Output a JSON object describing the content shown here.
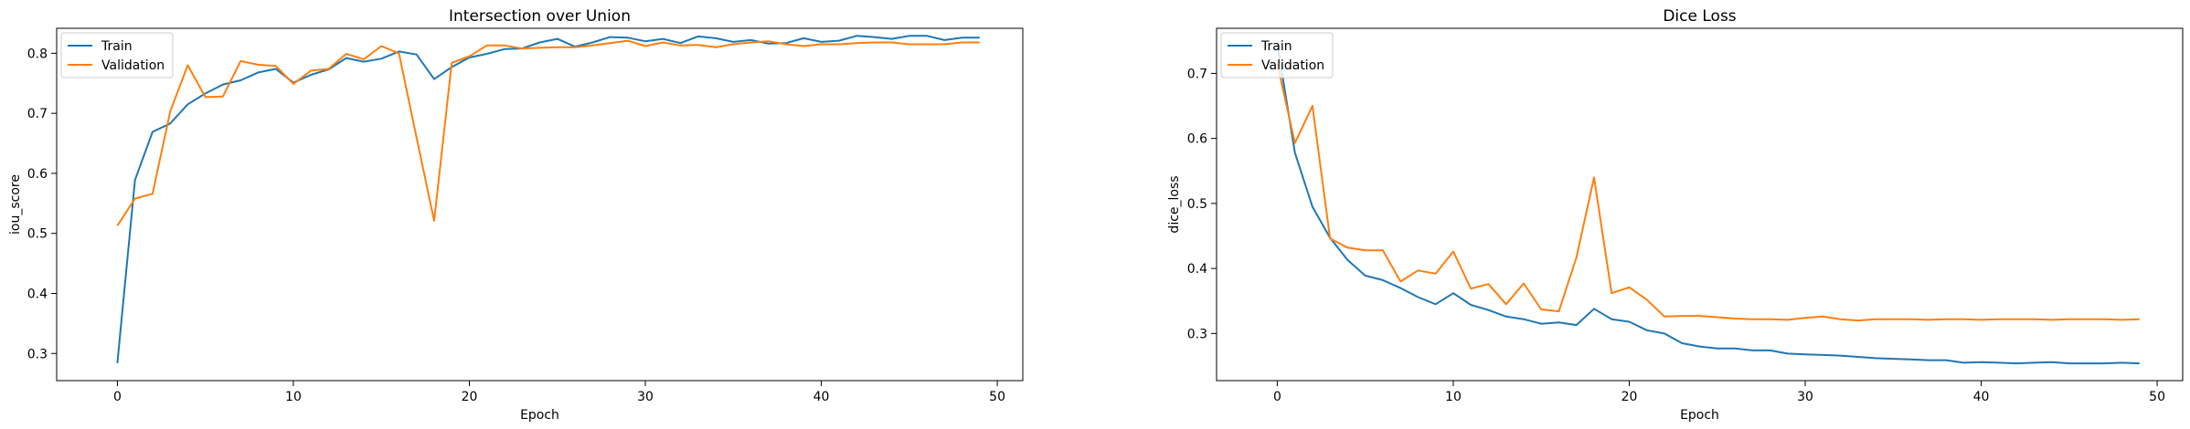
{
  "chart_data": [
    {
      "type": "line",
      "title": "Intersection over Union",
      "xlabel": "Epoch",
      "ylabel": "iou_score",
      "xlim": [
        -3.45,
        51.45
      ],
      "ylim": [
        0.2548,
        0.8416
      ],
      "xticks": [
        0,
        10,
        20,
        30,
        40,
        50
      ],
      "yticks": [
        0.3,
        0.4,
        0.5,
        0.6,
        0.7,
        0.8
      ],
      "ytick_labels": [
        "0.3",
        "0.4",
        "0.5",
        "0.6",
        "0.7",
        "0.8"
      ],
      "legend_position": "upper-left",
      "grid": false,
      "x": [
        0,
        1,
        2,
        3,
        4,
        5,
        6,
        7,
        8,
        9,
        10,
        11,
        12,
        13,
        14,
        15,
        16,
        17,
        18,
        19,
        20,
        21,
        22,
        23,
        24,
        25,
        26,
        27,
        28,
        29,
        30,
        31,
        32,
        33,
        34,
        35,
        36,
        37,
        38,
        39,
        40,
        41,
        42,
        43,
        44,
        45,
        46,
        47,
        48,
        49
      ],
      "series": [
        {
          "name": "Train",
          "color": "#1f77b4",
          "values": [
            0.284,
            0.589,
            0.669,
            0.683,
            0.715,
            0.733,
            0.748,
            0.755,
            0.768,
            0.774,
            0.751,
            0.764,
            0.773,
            0.792,
            0.786,
            0.791,
            0.803,
            0.798,
            0.757,
            0.777,
            0.793,
            0.799,
            0.807,
            0.808,
            0.818,
            0.824,
            0.811,
            0.818,
            0.827,
            0.826,
            0.82,
            0.824,
            0.817,
            0.828,
            0.825,
            0.819,
            0.822,
            0.816,
            0.817,
            0.825,
            0.819,
            0.821,
            0.829,
            0.827,
            0.824,
            0.829,
            0.829,
            0.822,
            0.826,
            0.826
          ]
        },
        {
          "name": "Validation",
          "color": "#ff7f0e",
          "values": [
            0.513,
            0.558,
            0.566,
            0.703,
            0.78,
            0.727,
            0.728,
            0.787,
            0.781,
            0.779,
            0.749,
            0.771,
            0.774,
            0.799,
            0.79,
            0.812,
            0.8,
            0.66,
            0.521,
            0.784,
            0.795,
            0.813,
            0.813,
            0.808,
            0.809,
            0.81,
            0.81,
            0.813,
            0.817,
            0.821,
            0.812,
            0.818,
            0.813,
            0.814,
            0.81,
            0.815,
            0.818,
            0.82,
            0.815,
            0.812,
            0.815,
            0.815,
            0.817,
            0.818,
            0.818,
            0.815,
            0.815,
            0.815,
            0.818,
            0.818
          ]
        }
      ]
    },
    {
      "type": "line",
      "title": "Dice Loss",
      "xlabel": "Epoch",
      "ylabel": "dice_loss",
      "xlim": [
        -3.45,
        51.45
      ],
      "ylim": [
        0.2275,
        0.7694
      ],
      "xticks": [
        0,
        10,
        20,
        30,
        40,
        50
      ],
      "yticks": [
        0.3,
        0.4,
        0.5,
        0.6,
        0.7
      ],
      "ytick_labels": [
        "0.3",
        "0.4",
        "0.5",
        "0.6",
        "0.7"
      ],
      "legend_position": "upper-left",
      "grid": false,
      "x": [
        0,
        1,
        2,
        3,
        4,
        5,
        6,
        7,
        8,
        9,
        10,
        11,
        12,
        13,
        14,
        15,
        16,
        17,
        18,
        19,
        20,
        21,
        22,
        23,
        24,
        25,
        26,
        27,
        28,
        29,
        30,
        31,
        32,
        33,
        34,
        35,
        36,
        37,
        38,
        39,
        40,
        41,
        42,
        43,
        44,
        45,
        46,
        47,
        48,
        49
      ],
      "series": [
        {
          "name": "Train",
          "color": "#1f77b4",
          "values": [
            0.746,
            0.578,
            0.495,
            0.447,
            0.413,
            0.389,
            0.382,
            0.37,
            0.356,
            0.345,
            0.362,
            0.344,
            0.336,
            0.326,
            0.322,
            0.315,
            0.317,
            0.313,
            0.338,
            0.322,
            0.318,
            0.305,
            0.3,
            0.285,
            0.28,
            0.277,
            0.277,
            0.274,
            0.274,
            0.269,
            0.268,
            0.267,
            0.266,
            0.264,
            0.262,
            0.261,
            0.26,
            0.259,
            0.259,
            0.255,
            0.256,
            0.255,
            0.254,
            0.255,
            0.256,
            0.254,
            0.254,
            0.254,
            0.255,
            0.254
          ]
        },
        {
          "name": "Validation",
          "color": "#ff7f0e",
          "values": [
            0.715,
            0.593,
            0.65,
            0.446,
            0.432,
            0.428,
            0.428,
            0.38,
            0.397,
            0.392,
            0.426,
            0.369,
            0.376,
            0.345,
            0.377,
            0.337,
            0.334,
            0.417,
            0.54,
            0.362,
            0.371,
            0.352,
            0.326,
            0.327,
            0.327,
            0.325,
            0.323,
            0.322,
            0.322,
            0.321,
            0.324,
            0.326,
            0.322,
            0.32,
            0.322,
            0.322,
            0.322,
            0.321,
            0.322,
            0.322,
            0.321,
            0.322,
            0.322,
            0.322,
            0.321,
            0.322,
            0.322,
            0.322,
            0.321,
            0.322
          ]
        }
      ]
    }
  ]
}
